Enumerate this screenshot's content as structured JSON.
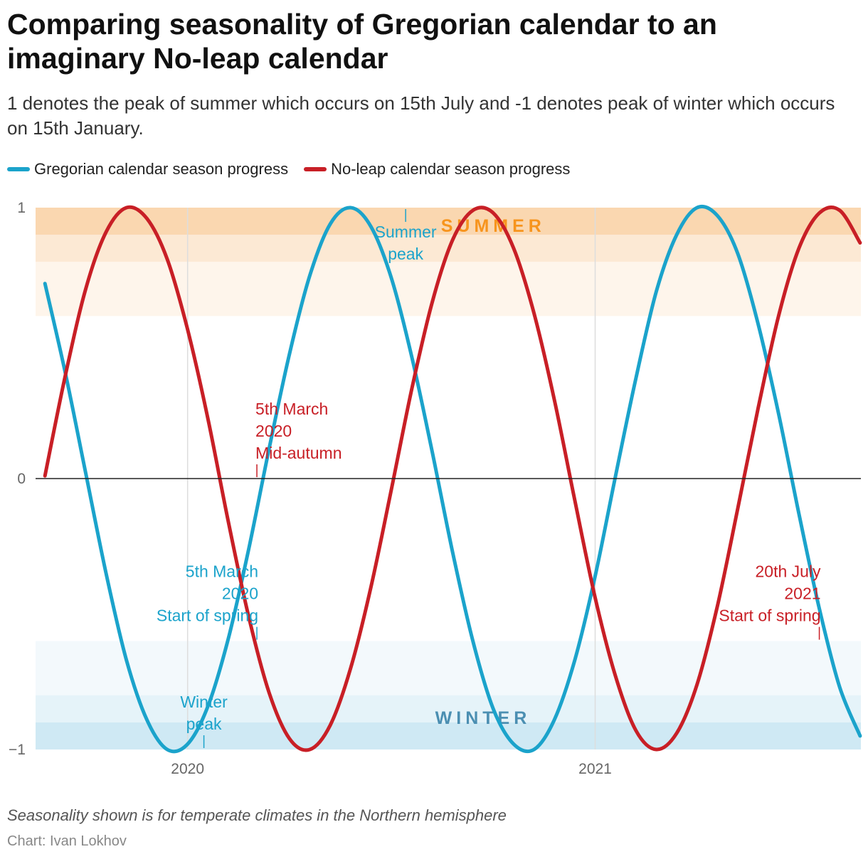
{
  "header": {
    "title": "Comparing seasonality of Gregorian calendar to an imaginary No-leap calendar",
    "subtitle": "1 denotes the peak of summer which occurs on 15th July and -1 denotes peak of winter which occurs on 15th January."
  },
  "legend": {
    "gregorian": "Gregorian calendar season progress",
    "noleap": "No-leap calendar season progress"
  },
  "footer": {
    "note": "Seasonality shown is for temperate climates in the Northern hemisphere",
    "credit": "Chart: Ivan Lokhov"
  },
  "colors": {
    "gregorian": "#1ba3cb",
    "noleap": "#c81f26",
    "summer_band": "#fad7b0",
    "summer_text": "#f7941d",
    "winter_band": "#cfe9f4",
    "winter_text": "#4b8fb2"
  },
  "chart_data": {
    "type": "line",
    "title": "",
    "xlabel": "",
    "ylabel": "",
    "xlim": [
      2019.627,
      2021.652
    ],
    "ylim": [
      -1,
      1
    ],
    "x_ticks": [
      {
        "value": 2020,
        "label": "2020"
      },
      {
        "value": 2021,
        "label": "2021"
      }
    ],
    "y_ticks": [
      {
        "value": 1,
        "label": "1"
      },
      {
        "value": 0,
        "label": "0"
      },
      {
        "value": -1,
        "label": "−1"
      }
    ],
    "bands": [
      {
        "name": "summer",
        "label": "SUMMER",
        "tiers": [
          [
            0.9,
            1.0
          ],
          [
            0.8,
            0.9
          ],
          [
            0.6,
            0.8
          ]
        ]
      },
      {
        "name": "winter",
        "label": "WINTER",
        "tiers": [
          [
            -1.0,
            -0.9
          ],
          [
            -0.9,
            -0.8
          ],
          [
            -0.8,
            -0.6
          ]
        ]
      }
    ],
    "series": [
      {
        "name": "Gregorian calendar season progress",
        "color": "#1ba3cb",
        "x": [
          2019.65,
          2019.7,
          2019.75,
          2019.8,
          2019.85,
          2019.9,
          2019.95,
          2020.0,
          2020.05,
          2020.1,
          2020.15,
          2020.2,
          2020.25,
          2020.3,
          2020.35,
          2020.4,
          2020.45,
          2020.5,
          2020.55,
          2020.6,
          2020.65,
          2020.7,
          2020.75,
          2020.8,
          2020.85,
          2020.9,
          2020.95,
          2021.0,
          2021.05,
          2021.1,
          2021.15,
          2021.2,
          2021.25,
          2021.3,
          2021.35,
          2021.4,
          2021.45,
          2021.5,
          2021.55,
          2021.6,
          2021.65
        ],
        "y": [
          0.72,
          0.39,
          0.02,
          -0.35,
          -0.67,
          -0.89,
          -1.0,
          -0.98,
          -0.84,
          -0.59,
          -0.26,
          0.11,
          0.46,
          0.75,
          0.94,
          1.0,
          0.93,
          0.74,
          0.45,
          0.1,
          -0.27,
          -0.6,
          -0.85,
          -0.98,
          -1.0,
          -0.89,
          -0.67,
          -0.36,
          0.01,
          0.37,
          0.69,
          0.9,
          1.0,
          0.97,
          0.83,
          0.57,
          0.24,
          -0.13,
          -0.48,
          -0.77,
          -0.95
        ]
      },
      {
        "name": "No-leap calendar season progress",
        "color": "#c81f26",
        "x": [
          2019.65,
          2019.7,
          2019.75,
          2019.8,
          2019.85,
          2019.9,
          2019.95,
          2020.0,
          2020.05,
          2020.1,
          2020.15,
          2020.2,
          2020.25,
          2020.3,
          2020.35,
          2020.4,
          2020.45,
          2020.5,
          2020.55,
          2020.6,
          2020.65,
          2020.7,
          2020.75,
          2020.8,
          2020.85,
          2020.9,
          2020.95,
          2021.0,
          2021.05,
          2021.1,
          2021.15,
          2021.2,
          2021.25,
          2021.3,
          2021.35,
          2021.4,
          2021.45,
          2021.5,
          2021.55,
          2021.6,
          2021.65
        ],
        "y": [
          0.01,
          0.38,
          0.7,
          0.91,
          1.0,
          0.96,
          0.81,
          0.55,
          0.22,
          -0.16,
          -0.51,
          -0.79,
          -0.96,
          -1.0,
          -0.91,
          -0.7,
          -0.4,
          -0.04,
          0.33,
          0.65,
          0.88,
          0.99,
          0.98,
          0.85,
          0.61,
          0.29,
          -0.08,
          -0.44,
          -0.73,
          -0.93,
          -1.0,
          -0.94,
          -0.76,
          -0.47,
          -0.11,
          0.26,
          0.6,
          0.85,
          0.98,
          0.99,
          0.87
        ]
      }
    ],
    "annotations": [
      {
        "series": "Gregorian calendar season progress",
        "x": 2020.04,
        "y": -1.0,
        "lines": [
          "Winter",
          "peak"
        ],
        "align": "middle",
        "side": "above"
      },
      {
        "series": "Gregorian calendar season progress",
        "x": 2020.535,
        "y": 1.0,
        "lines": [
          "Summer",
          "peak"
        ],
        "align": "middle",
        "side": "below"
      },
      {
        "series": "Gregorian calendar season progress",
        "x": 2020.17,
        "y": -0.6,
        "lines": [
          "5th March",
          "2020",
          "Start of spring"
        ],
        "align": "end",
        "side": "above"
      },
      {
        "series": "No-leap calendar season progress",
        "x": 2020.17,
        "y": 0.0,
        "lines": [
          "5th March",
          "2020",
          "Mid-autumn"
        ],
        "align": "start",
        "side": "above"
      },
      {
        "series": "No-leap calendar season progress",
        "x": 2021.55,
        "y": -0.6,
        "lines": [
          "20th July",
          "2021",
          "Start of spring"
        ],
        "align": "end",
        "side": "above"
      }
    ]
  }
}
